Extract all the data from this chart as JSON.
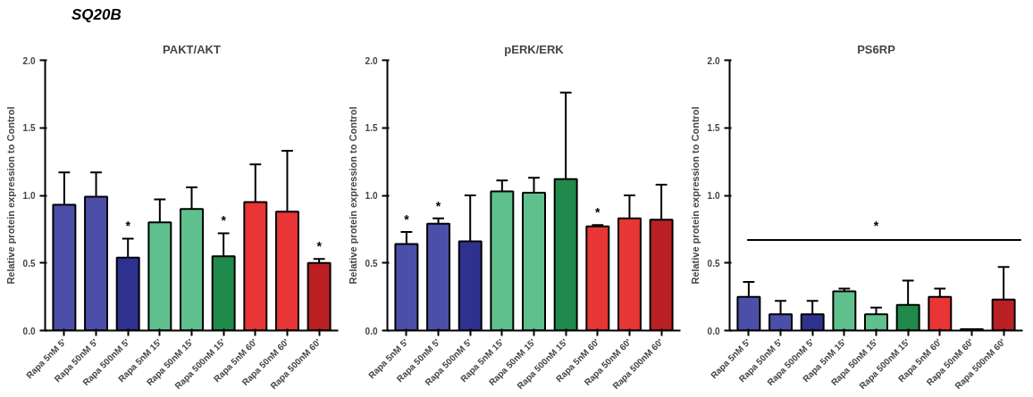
{
  "chart_data": [
    {
      "type": "bar",
      "title": "PAKT/AKT",
      "ylabel": "Relative protein expression to Control",
      "categories": [
        "Rapa 5nM 5'",
        "Rapa 50nM 5'",
        "Rapa 500nM 5'",
        "Rapa 5nM 15'",
        "Rapa 50nM 15'",
        "Rapa 500nM 15'",
        "Rapa 5nM 60'",
        "Rapa 50nM 60'",
        "Rapa 500nM 60'"
      ],
      "values": [
        0.93,
        0.99,
        0.54,
        0.8,
        0.9,
        0.55,
        0.95,
        0.88,
        0.5
      ],
      "errors": [
        [
          0.93,
          1.17
        ],
        [
          0.99,
          1.17
        ],
        [
          0.54,
          0.68
        ],
        [
          0.8,
          0.97
        ],
        [
          0.9,
          1.06
        ],
        [
          0.55,
          0.72
        ],
        [
          0.95,
          1.23
        ],
        [
          0.88,
          1.33
        ],
        [
          0.5,
          0.53
        ]
      ],
      "colors": [
        "#4b4fa8",
        "#4b4fa8",
        "#2e318e",
        "#5fc08e",
        "#5fc08e",
        "#1f8a4c",
        "#e83535",
        "#e83535",
        "#b91f23"
      ],
      "ylim": [
        0,
        2
      ],
      "yticks": [
        {
          "value": 0,
          "label": "0.0"
        },
        {
          "value": 0.5,
          "label": "0.5"
        },
        {
          "value": 1,
          "label": "1.0"
        },
        {
          "value": 1.5,
          "label": "1.5"
        },
        {
          "value": 2,
          "label": "2.0"
        }
      ],
      "subtitle": "SQ20B",
      "value_labels": [
        null,
        null,
        "*",
        null,
        null,
        "*",
        null,
        null,
        "*"
      ]
    },
    {
      "type": "bar",
      "title": "pERK/ERK",
      "ylabel": "Relative protein expression to Control",
      "categories": [
        "Rapa 5nM 5'",
        "Rapa 50nM 5'",
        "Rapa 500nM 5'",
        "Rapa 5nM 15'",
        "Rapa 50nM 15'",
        "Rapa 500nM 15'",
        "Rapa 5nM 60'",
        "Rapa 50nM 60'",
        "Rapa 500nM 60'"
      ],
      "values": [
        0.64,
        0.79,
        0.66,
        1.03,
        1.02,
        1.12,
        0.77,
        0.83,
        0.82
      ],
      "errors": [
        [
          0.64,
          0.73
        ],
        [
          0.79,
          0.83
        ],
        [
          0.66,
          1.0
        ],
        [
          1.03,
          1.11
        ],
        [
          1.02,
          1.13
        ],
        [
          1.12,
          1.76
        ],
        [
          0.77,
          0.78
        ],
        [
          0.83,
          1.0
        ],
        [
          0.82,
          1.08
        ]
      ],
      "colors": [
        "#4b4fa8",
        "#4b4fa8",
        "#2e318e",
        "#5fc08e",
        "#5fc08e",
        "#1f8a4c",
        "#e83535",
        "#e83535",
        "#b91f23"
      ],
      "ylim": [
        0,
        2
      ],
      "yticks": [
        {
          "value": 0,
          "label": "0.0"
        },
        {
          "value": 0.5,
          "label": "0.5"
        },
        {
          "value": 1,
          "label": "1.0"
        },
        {
          "value": 1.5,
          "label": "1.5"
        },
        {
          "value": 2,
          "label": "2.0"
        }
      ],
      "value_labels": [
        "*",
        "*",
        null,
        null,
        null,
        null,
        "*",
        null,
        null
      ]
    },
    {
      "type": "bar",
      "title": "PS6RP",
      "ylabel": "Relative protein expression to Control",
      "categories": [
        "Rapa 5nM 5'",
        "Rapa 50nM 5'",
        "Rapa 500nM 5'",
        "Rapa 5nM 15'",
        "Rapa 50nM 15'",
        "Rapa 500nM 15'",
        "Rapa 5nM 60'",
        "Rapa 50nM 60'",
        "Rapa 500nM 60'"
      ],
      "values": [
        0.25,
        0.12,
        0.12,
        0.29,
        0.12,
        0.19,
        0.25,
        0.01,
        0.23
      ],
      "errors": [
        [
          0.25,
          0.36
        ],
        [
          0.12,
          0.22
        ],
        [
          0.12,
          0.22
        ],
        [
          0.29,
          0.31
        ],
        [
          0.12,
          0.17
        ],
        [
          0.19,
          0.37
        ],
        [
          0.25,
          0.31
        ],
        null,
        [
          0.23,
          0.47
        ]
      ],
      "colors": [
        "#4b4fa8",
        "#4b4fa8",
        "#2e318e",
        "#5fc08e",
        "#5fc08e",
        "#1f8a4c",
        "#e83535",
        "#e83535",
        "#b91f23"
      ],
      "ylim": [
        0,
        2
      ],
      "yticks": [
        {
          "value": 0,
          "label": "0.0"
        },
        {
          "value": 0.5,
          "label": "0.5"
        },
        {
          "value": 1,
          "label": "1.0"
        },
        {
          "value": 1.5,
          "label": "1.5"
        },
        {
          "value": 2,
          "label": "2.0"
        }
      ],
      "ref_lines": [
        {
          "axis": "y",
          "value": 0.67,
          "label": "*",
          "color": "#000000"
        }
      ]
    }
  ]
}
